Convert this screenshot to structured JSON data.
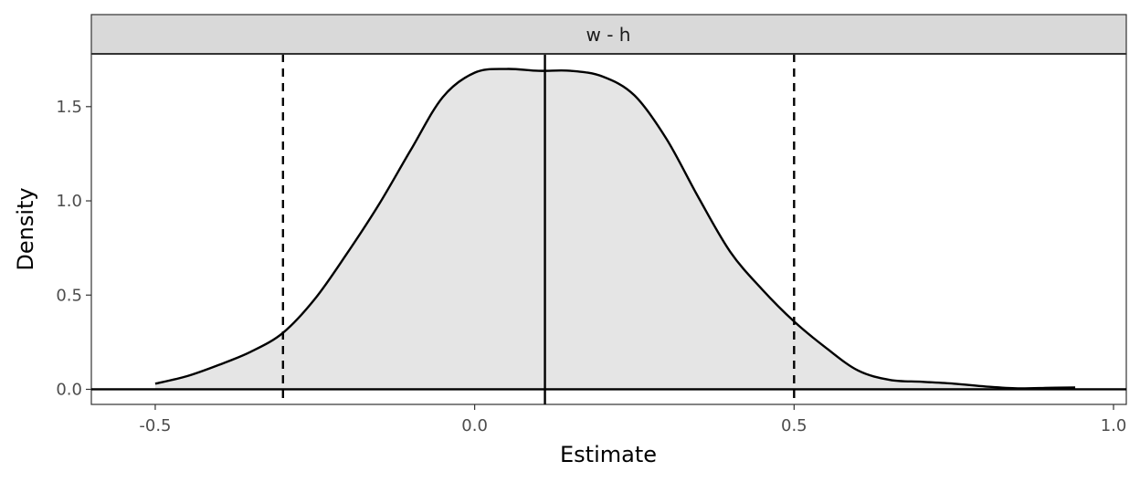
{
  "chart_data": {
    "type": "area",
    "facet_label": "w - h",
    "xlabel": "Estimate",
    "ylabel": "Density",
    "xlim": [
      -0.6,
      1.02
    ],
    "ylim": [
      -0.08,
      1.78
    ],
    "x_ticks": [
      -0.5,
      0.0,
      0.5,
      1.0
    ],
    "x_tick_labels": [
      "-0.5",
      "0.0",
      "0.5",
      "1.0"
    ],
    "y_ticks": [
      0.0,
      0.5,
      1.0,
      1.5
    ],
    "y_tick_labels": [
      "0.0",
      "0.5",
      "1.0",
      "1.5"
    ],
    "grid": false,
    "legend": "none",
    "density": {
      "x": [
        -0.5,
        -0.45,
        -0.4,
        -0.35,
        -0.3,
        -0.25,
        -0.2,
        -0.15,
        -0.1,
        -0.05,
        0.0,
        0.05,
        0.1,
        0.15,
        0.2,
        0.25,
        0.3,
        0.35,
        0.4,
        0.45,
        0.5,
        0.55,
        0.6,
        0.65,
        0.7,
        0.75,
        0.8,
        0.85,
        0.9,
        0.94
      ],
      "y": [
        0.03,
        0.07,
        0.13,
        0.2,
        0.3,
        0.48,
        0.72,
        0.98,
        1.27,
        1.55,
        1.68,
        1.7,
        1.69,
        1.69,
        1.66,
        1.56,
        1.33,
        1.02,
        0.73,
        0.53,
        0.36,
        0.22,
        0.1,
        0.05,
        0.04,
        0.03,
        0.015,
        0.005,
        0.008,
        0.01
      ]
    },
    "vlines": [
      {
        "x": 0.11,
        "style": "solid"
      },
      {
        "x": -0.3,
        "style": "dashed"
      },
      {
        "x": 0.5,
        "style": "dashed"
      }
    ],
    "hline": {
      "y": 0.0,
      "style": "solid"
    },
    "colors": {
      "fill": "#e5e5e5",
      "line": "#000000",
      "strip_fill": "#d9d9d9",
      "strip_border": "#333333",
      "panel_border": "#333333",
      "tick_label": "#4d4d4d"
    }
  }
}
